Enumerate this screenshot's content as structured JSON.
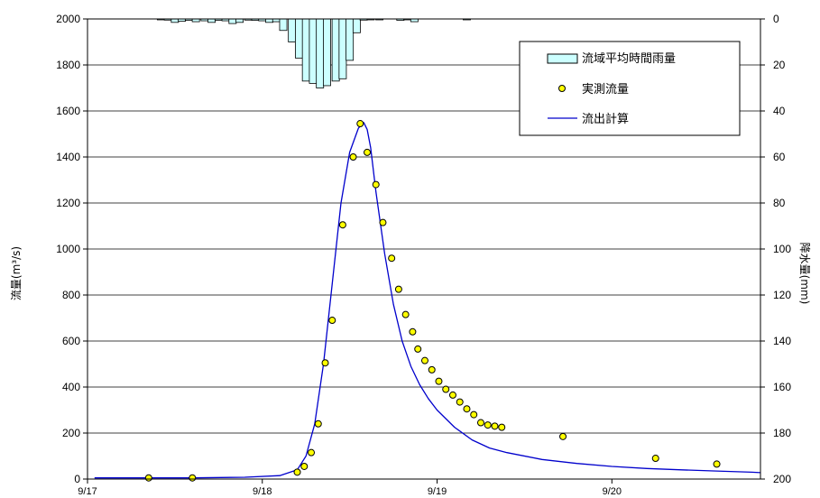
{
  "chart_data": {
    "type": "line",
    "title": "",
    "ylabel": "流量(m³/s)",
    "y2label": "降水量(mm)",
    "ylim": [
      0,
      2000
    ],
    "y2lim": [
      200,
      0
    ],
    "yticks": [
      0,
      200,
      400,
      600,
      800,
      1000,
      1200,
      1400,
      1600,
      1800,
      2000
    ],
    "y2ticks": [
      0,
      20,
      40,
      60,
      80,
      100,
      120,
      140,
      160,
      180,
      200
    ],
    "xlim": [
      0,
      3.85
    ],
    "xticks": [
      {
        "value": 0,
        "label": "9/17"
      },
      {
        "value": 1,
        "label": "9/18"
      },
      {
        "value": 2,
        "label": "9/19"
      },
      {
        "value": 3,
        "label": "9/20"
      }
    ],
    "grid": true,
    "legend": {
      "position": "top-right",
      "items": [
        {
          "label": "流域平均時間雨量",
          "kind": "bar"
        },
        {
          "label": "実測流量",
          "kind": "marker"
        },
        {
          "label": "流出計算",
          "kind": "line"
        }
      ]
    },
    "colors": {
      "bar_fill": "#ccffff",
      "bar_stroke": "#000000",
      "marker_fill": "#ffff00",
      "marker_stroke": "#000000",
      "line": "#0000cc",
      "grid": "#000000"
    },
    "rainfall": {
      "name": "流域平均時間雨量",
      "bar_width": 0.0417,
      "x": [
        0.42,
        0.46,
        0.5,
        0.54,
        0.58,
        0.62,
        0.67,
        0.71,
        0.75,
        0.79,
        0.83,
        0.87,
        0.92,
        0.96,
        1.0,
        1.04,
        1.08,
        1.12,
        1.17,
        1.21,
        1.25,
        1.29,
        1.33,
        1.37,
        1.42,
        1.46,
        1.5,
        1.54,
        1.58,
        1.62,
        1.67,
        1.79,
        1.83,
        1.87,
        2.17
      ],
      "values": [
        0.3,
        0.5,
        1.5,
        1,
        0.6,
        1.2,
        0.8,
        1.5,
        0.6,
        0.8,
        2,
        1.5,
        0.5,
        0.6,
        0.8,
        1.5,
        1.2,
        5,
        10,
        17,
        27,
        28,
        30,
        29,
        27,
        26,
        18,
        6,
        0.5,
        0.3,
        0.2,
        0.6,
        0.3,
        1.2,
        0.2
      ]
    },
    "observed": {
      "name": "実測流量",
      "x": [
        0.35,
        0.6,
        1.2,
        1.24,
        1.28,
        1.32,
        1.36,
        1.4,
        1.46,
        1.52,
        1.56,
        1.6,
        1.65,
        1.69,
        1.74,
        1.78,
        1.82,
        1.86,
        1.89,
        1.93,
        1.97,
        2.01,
        2.05,
        2.09,
        2.13,
        2.17,
        2.21,
        2.25,
        2.29,
        2.33,
        2.37,
        2.72,
        3.25,
        3.6
      ],
      "values": [
        5,
        5,
        30,
        55,
        115,
        240,
        505,
        690,
        1105,
        1400,
        1545,
        1420,
        1280,
        1115,
        960,
        825,
        715,
        640,
        565,
        515,
        475,
        425,
        390,
        365,
        335,
        305,
        280,
        245,
        235,
        230,
        225,
        185,
        90,
        65
      ]
    },
    "calculated": {
      "name": "流出計算",
      "x": [
        0.04,
        0.6,
        0.9,
        1.1,
        1.2,
        1.25,
        1.3,
        1.35,
        1.4,
        1.45,
        1.5,
        1.55,
        1.58,
        1.6,
        1.62,
        1.65,
        1.7,
        1.75,
        1.8,
        1.85,
        1.9,
        1.95,
        2.0,
        2.1,
        2.2,
        2.3,
        2.4,
        2.6,
        2.8,
        3.0,
        3.2,
        3.4,
        3.6,
        3.8,
        3.85
      ],
      "values": [
        5,
        5,
        8,
        15,
        40,
        100,
        240,
        500,
        850,
        1200,
        1420,
        1525,
        1550,
        1520,
        1440,
        1250,
        980,
        760,
        600,
        490,
        410,
        350,
        300,
        225,
        170,
        135,
        115,
        85,
        68,
        55,
        46,
        40,
        35,
        30,
        28
      ]
    }
  }
}
